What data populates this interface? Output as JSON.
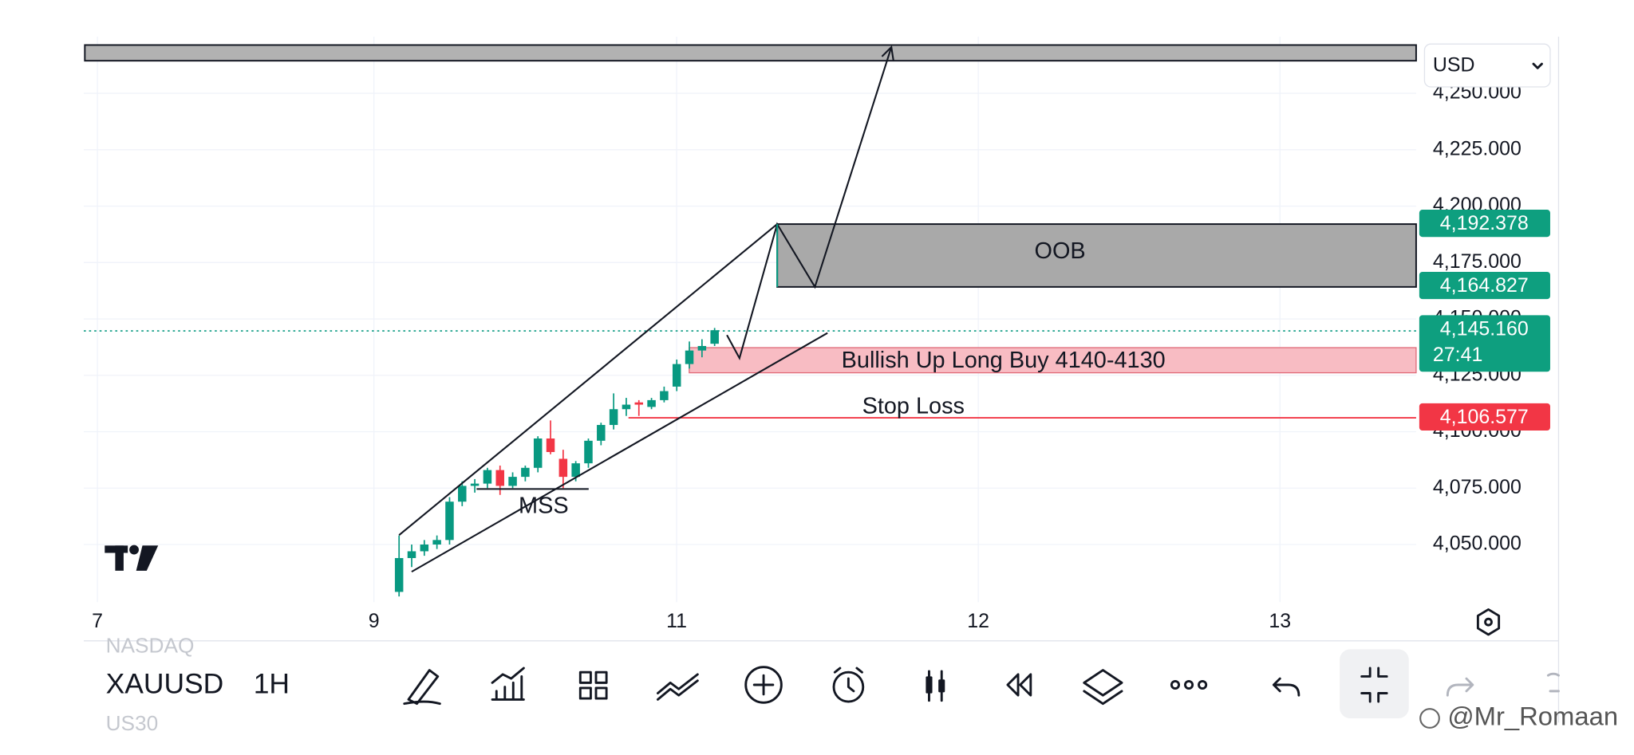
{
  "currency": "USD",
  "price_axis": {
    "ticks": [
      {
        "value": 4250,
        "label": "4,250.000"
      },
      {
        "value": 4225,
        "label": "4,225.000"
      },
      {
        "value": 4200,
        "label": "4,200.000"
      },
      {
        "value": 4175,
        "label": "4,175.000"
      },
      {
        "value": 4150,
        "label": "4,150.000"
      },
      {
        "value": 4125,
        "label": "4,125.000"
      },
      {
        "value": 4100,
        "label": "4,100.000"
      },
      {
        "value": 4075,
        "label": "4,075.000"
      },
      {
        "value": 4050,
        "label": "4,050.000"
      }
    ]
  },
  "time_axis": {
    "labels": [
      "7",
      "9",
      "11",
      "12",
      "13"
    ]
  },
  "price_tags": [
    {
      "value": 4192.378,
      "label": "4,192.378",
      "color": "#0e9f7f"
    },
    {
      "value": 4164.827,
      "label": "4,164.827",
      "color": "#0e9f7f"
    },
    {
      "value": 4145.16,
      "label": "4,145.160",
      "color": "#0e9f7f"
    },
    {
      "value": 4106.577,
      "label": "4,106.577",
      "color": "#f23645"
    }
  ],
  "countdown": "27:41",
  "annotations": {
    "zone": "OOB",
    "entry": "Bullish Up Long Buy 4140-4130",
    "stop": "Stop Loss",
    "structure": "MSS"
  },
  "candles": [
    {
      "o": 4029,
      "h": 4054,
      "l": 4027,
      "c": 4044
    },
    {
      "o": 4044,
      "h": 4050,
      "l": 4040,
      "c": 4047
    },
    {
      "o": 4047,
      "h": 4052,
      "l": 4045,
      "c": 4050
    },
    {
      "o": 4050,
      "h": 4054,
      "l": 4048,
      "c": 4052
    },
    {
      "o": 4052,
      "h": 4071,
      "l": 4050,
      "c": 4069
    },
    {
      "o": 4069,
      "h": 4078,
      "l": 4067,
      "c": 4076
    },
    {
      "o": 4076,
      "h": 4079,
      "l": 4073,
      "c": 4077
    },
    {
      "o": 4077,
      "h": 4084,
      "l": 4075,
      "c": 4083
    },
    {
      "o": 4083,
      "h": 4085,
      "l": 4072,
      "c": 4076
    },
    {
      "o": 4076,
      "h": 4082,
      "l": 4075,
      "c": 4080
    },
    {
      "o": 4080,
      "h": 4085,
      "l": 4078,
      "c": 4084
    },
    {
      "o": 4084,
      "h": 4098,
      "l": 4082,
      "c": 4097
    },
    {
      "o": 4097,
      "h": 4105,
      "l": 4090,
      "c": 4091
    },
    {
      "o": 4088,
      "h": 4092,
      "l": 4075,
      "c": 4080
    },
    {
      "o": 4080,
      "h": 4087,
      "l": 4078,
      "c": 4086
    },
    {
      "o": 4086,
      "h": 4097,
      "l": 4084,
      "c": 4096
    },
    {
      "o": 4096,
      "h": 4104,
      "l": 4094,
      "c": 4103
    },
    {
      "o": 4103,
      "h": 4117,
      "l": 4101,
      "c": 4110
    },
    {
      "o": 4110,
      "h": 4115,
      "l": 4107,
      "c": 4112
    },
    {
      "o": 4113,
      "h": 4114,
      "l": 4107,
      "c": 4112
    },
    {
      "o": 4111,
      "h": 4115,
      "l": 4110,
      "c": 4114
    },
    {
      "o": 4114,
      "h": 4120,
      "l": 4113,
      "c": 4118
    },
    {
      "o": 4120,
      "h": 4132,
      "l": 4118,
      "c": 4130
    },
    {
      "o": 4130,
      "h": 4140,
      "l": 4128,
      "c": 4136
    },
    {
      "o": 4136,
      "h": 4141,
      "l": 4133,
      "c": 4138
    },
    {
      "o": 4139,
      "h": 4146,
      "l": 4138,
      "c": 4145
    }
  ],
  "candle_colors": {
    "up": "#089981",
    "down": "#f23645"
  },
  "symbol": {
    "current": "XAUUSD",
    "above": "NASDAQ",
    "below": "US30"
  },
  "interval": "1H",
  "watermark": "@Mr_Romaan"
}
